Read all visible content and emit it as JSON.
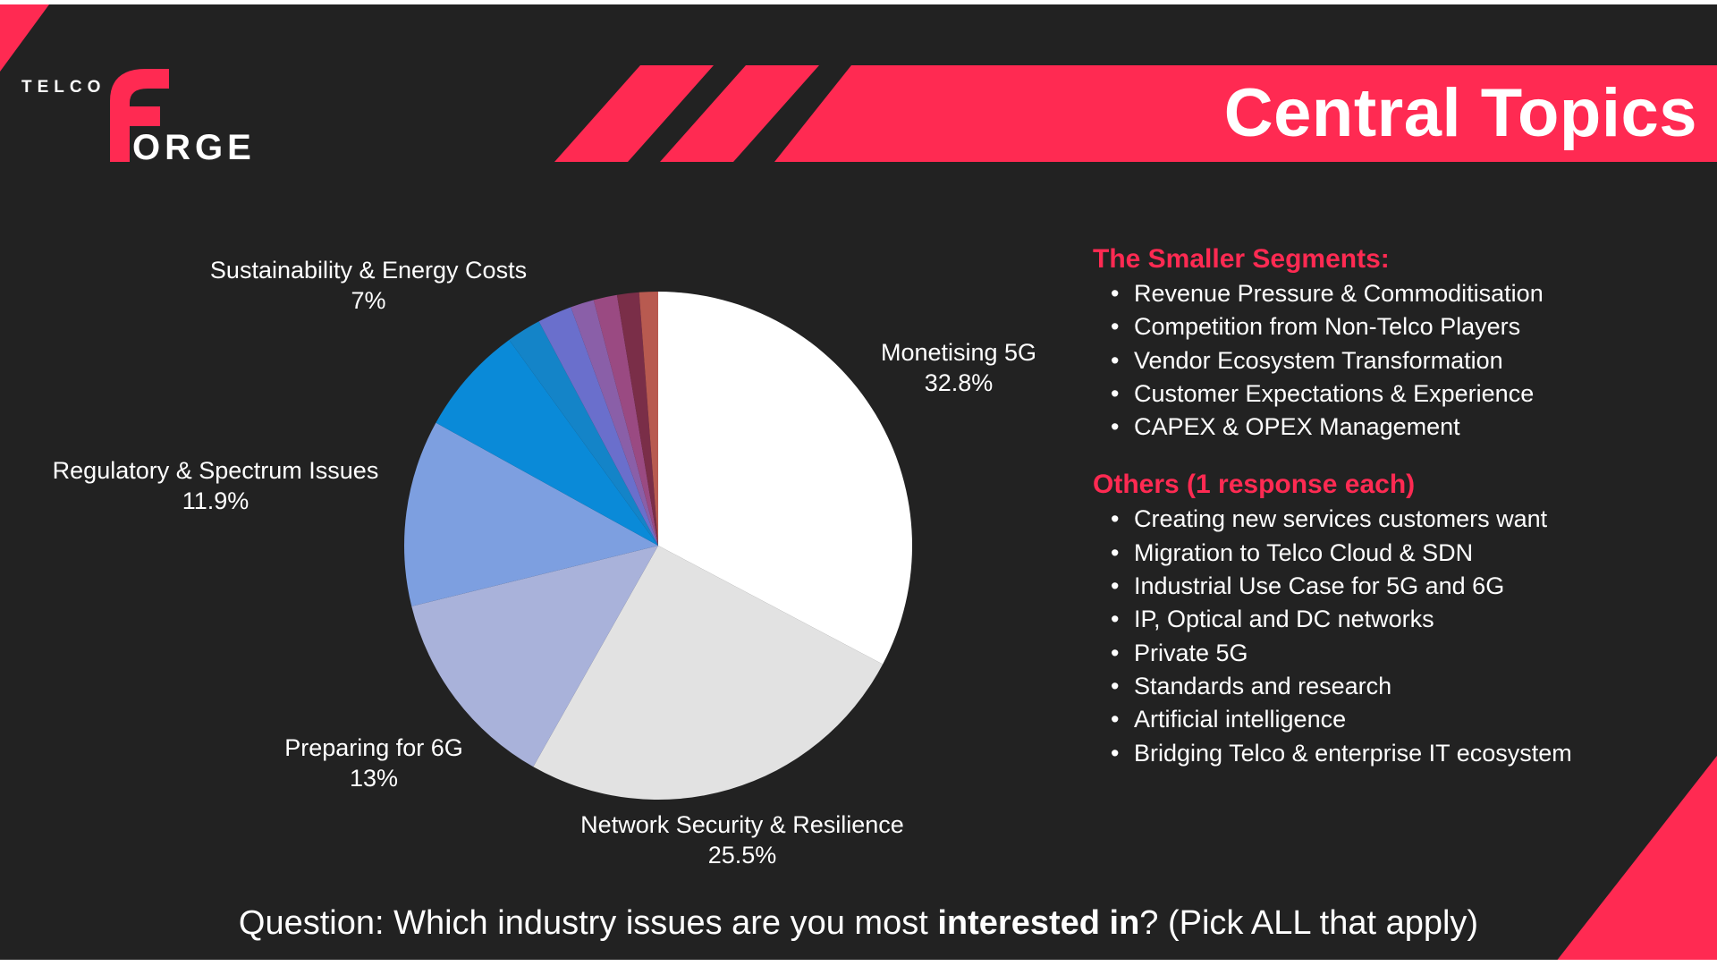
{
  "header": {
    "title": "Central Topics",
    "accent": "#ff2a52",
    "background": "#222222"
  },
  "logo": {
    "word_top": "TELCO",
    "word_initial": "F",
    "word_rest": "ORGE"
  },
  "chart_data": {
    "type": "pie",
    "start": "12 o'clock, clockwise",
    "slices": [
      {
        "name": "Monetising 5G",
        "value": 32.8,
        "label": "32.8%",
        "color": "#ffffff"
      },
      {
        "name": "Network Security & Resilience",
        "value": 25.5,
        "label": "25.5%",
        "color": "#e2e2e2"
      },
      {
        "name": "Preparing for 6G",
        "value": 13,
        "label": "13%",
        "color": "#a9b2da"
      },
      {
        "name": "Regulatory & Spectrum Issues",
        "value": 11.9,
        "label": "11.9%",
        "color": "#7d9fe0"
      },
      {
        "name": "Sustainability & Energy Costs",
        "value": 7,
        "label": "7%",
        "color": "#0a8ad8"
      },
      {
        "name": "",
        "value": 2.2,
        "color": "#1484c8"
      },
      {
        "name": "",
        "value": 2.2,
        "color": "#6a6fcc"
      },
      {
        "name": "",
        "value": 1.5,
        "color": "#8a5fa8"
      },
      {
        "name": "",
        "value": 1.5,
        "color": "#9a4a82"
      },
      {
        "name": "",
        "value": 1.4,
        "color": "#7a2e48"
      },
      {
        "name": "",
        "value": 1.2,
        "color": "#b85a50"
      }
    ]
  },
  "smaller_segments": {
    "heading": "The Smaller Segments:",
    "items": [
      "Revenue Pressure & Commoditisation",
      "Competition from Non-Telco Players",
      "Vendor Ecosystem Transformation",
      "Customer Expectations & Experience",
      "CAPEX & OPEX Management"
    ]
  },
  "others": {
    "heading": "Others (1 response each)",
    "items": [
      "Creating new services customers want",
      "Migration to Telco Cloud & SDN",
      "Industrial Use Case for 5G and 6G",
      "IP, Optical and DC networks",
      "Private 5G",
      "Standards and research",
      "Artificial intelligence",
      "Bridging Telco & enterprise IT ecosystem"
    ]
  },
  "question": {
    "prefix": "Question: Which industry issues are you most ",
    "bold": "interested in",
    "suffix": "? (Pick ALL that apply)"
  }
}
